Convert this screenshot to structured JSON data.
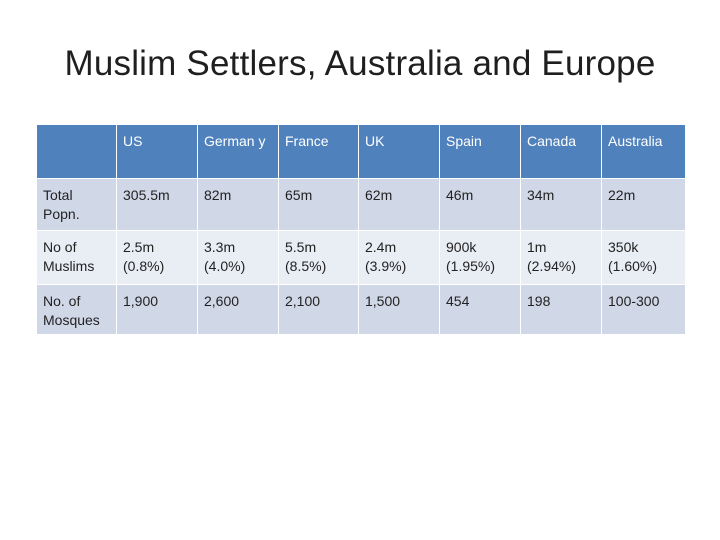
{
  "slide": {
    "title": "Muslim Settlers, Australia and Europe"
  },
  "table": {
    "corner": "",
    "columns": [
      "US",
      "German y",
      "France",
      "UK",
      "Spain",
      "Canada",
      "Australia"
    ],
    "rows": [
      {
        "label": "Total Popn.",
        "values": [
          "305.5m",
          "82m",
          "65m",
          "62m",
          "46m",
          "34m",
          "22m"
        ]
      },
      {
        "label": "No of Muslims",
        "values": [
          "2.5m (0.8%)",
          "3.3m (4.0%)",
          "5.5m (8.5%)",
          "2.4m (3.9%)",
          "900k (1.95%)",
          "1m (2.94%)",
          "350k (1.60%)"
        ]
      },
      {
        "label": "No. of Mosques",
        "values": [
          "1,900",
          "2,600",
          "2,100",
          "1,500",
          "454",
          "198",
          "100-300"
        ]
      }
    ]
  },
  "colors": {
    "header": "#4f81bd",
    "row_dark": "#d0d8e8",
    "row_light": "#e9edf4"
  }
}
